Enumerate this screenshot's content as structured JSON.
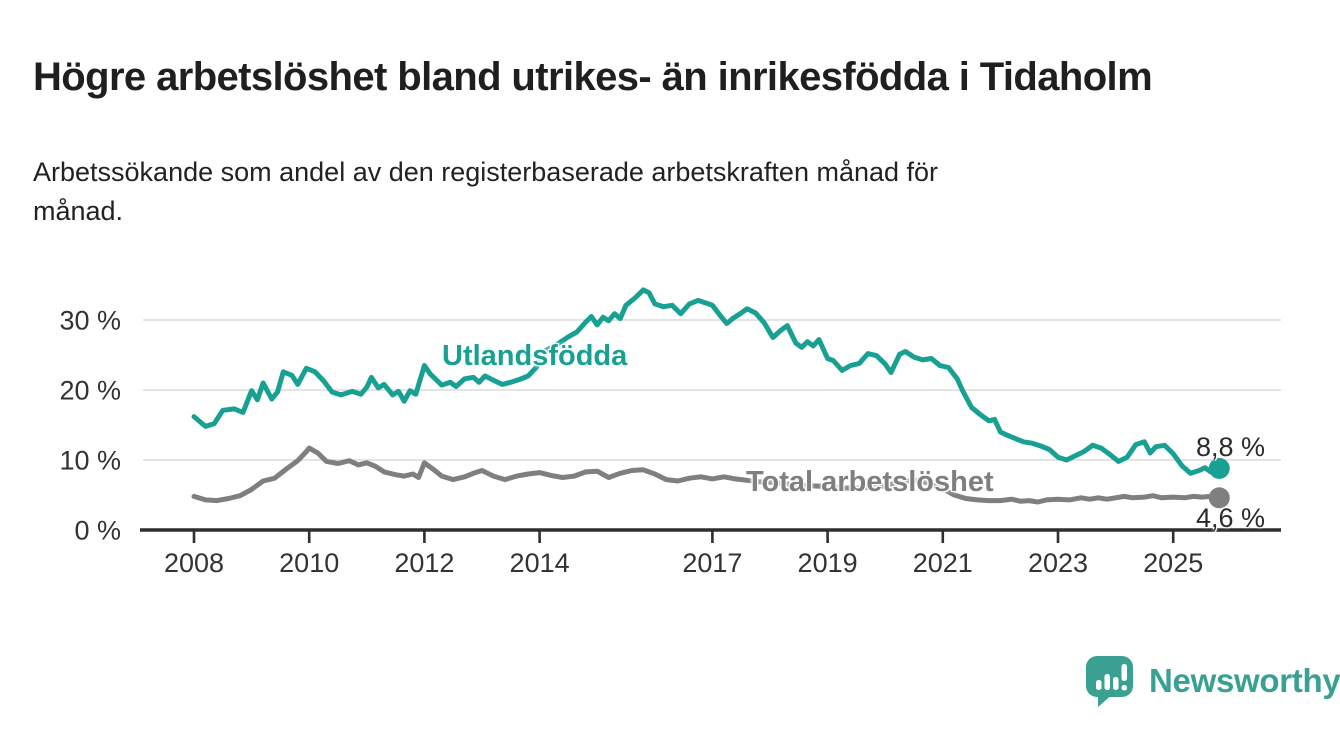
{
  "title": "Högre arbetslöshet bland utrikes- än inrikesfödda i Tidaholm",
  "subtitle": {
    "line1": "Arbetssökande som andel av den registerbaserade arbetskraften månad för",
    "line2": "månad."
  },
  "colors": {
    "foreign_born_line": "#18a193",
    "total_line": "#7f7f7f",
    "grid": "#dcdcdc",
    "axis": "#2f2f2f",
    "tick_label": "#333333",
    "title_text": "#1f1f1f",
    "end_label_text": "#2b2b2b",
    "logo_teal": "#3aa092",
    "background": "#ffffff"
  },
  "chart_data": {
    "type": "line",
    "title": "",
    "xlabel": "",
    "ylabel": "",
    "x_axis_years": [
      2007.06,
      2026.87
    ],
    "ylim": [
      0,
      35
    ],
    "grid": "horizontal",
    "legend_position": "inline-labels",
    "x_tick_years": [
      2008,
      2010,
      2012,
      2014,
      2017,
      2019,
      2021,
      2023,
      2025
    ],
    "x_tick_labels": [
      "2008",
      "2010",
      "2012",
      "2014",
      "2017",
      "2019",
      "2021",
      "2023",
      "2025"
    ],
    "y_ticks": [
      0,
      10,
      20,
      30
    ],
    "y_tick_labels": [
      "0 %",
      "10 %",
      "20 %",
      "30 %"
    ],
    "series": [
      {
        "name": "Utlandsfödda",
        "color": "#18a193",
        "end_label": "8,8 %",
        "end_value": 8.8,
        "points": [
          [
            2008.0,
            16.2
          ],
          [
            2008.2,
            14.8
          ],
          [
            2008.35,
            15.2
          ],
          [
            2008.5,
            17.1
          ],
          [
            2008.7,
            17.3
          ],
          [
            2008.85,
            16.8
          ],
          [
            2009.0,
            19.9
          ],
          [
            2009.1,
            18.6
          ],
          [
            2009.2,
            21.0
          ],
          [
            2009.35,
            18.7
          ],
          [
            2009.45,
            19.7
          ],
          [
            2009.55,
            22.6
          ],
          [
            2009.7,
            22.1
          ],
          [
            2009.8,
            20.8
          ],
          [
            2009.95,
            23.1
          ],
          [
            2010.1,
            22.6
          ],
          [
            2010.25,
            21.3
          ],
          [
            2010.4,
            19.7
          ],
          [
            2010.55,
            19.3
          ],
          [
            2010.75,
            19.8
          ],
          [
            2010.9,
            19.4
          ],
          [
            2011.0,
            20.4
          ],
          [
            2011.08,
            21.8
          ],
          [
            2011.2,
            20.3
          ],
          [
            2011.3,
            20.8
          ],
          [
            2011.45,
            19.3
          ],
          [
            2011.55,
            19.8
          ],
          [
            2011.65,
            18.4
          ],
          [
            2011.75,
            19.9
          ],
          [
            2011.85,
            19.4
          ],
          [
            2012.0,
            23.5
          ],
          [
            2012.1,
            22.3
          ],
          [
            2012.3,
            20.7
          ],
          [
            2012.45,
            21.1
          ],
          [
            2012.55,
            20.5
          ],
          [
            2012.7,
            21.6
          ],
          [
            2012.85,
            21.8
          ],
          [
            2012.95,
            21.1
          ],
          [
            2013.05,
            22.0
          ],
          [
            2013.2,
            21.4
          ],
          [
            2013.35,
            20.8
          ],
          [
            2013.5,
            21.1
          ],
          [
            2013.65,
            21.5
          ],
          [
            2013.8,
            22.0
          ],
          [
            2013.95,
            23.3
          ],
          [
            2014.1,
            25.6
          ],
          [
            2014.3,
            26.5
          ],
          [
            2014.5,
            27.6
          ],
          [
            2014.65,
            28.3
          ],
          [
            2014.8,
            29.7
          ],
          [
            2014.9,
            30.5
          ],
          [
            2015.0,
            29.3
          ],
          [
            2015.1,
            30.4
          ],
          [
            2015.2,
            29.9
          ],
          [
            2015.3,
            30.9
          ],
          [
            2015.4,
            30.2
          ],
          [
            2015.5,
            32.1
          ],
          [
            2015.65,
            33.1
          ],
          [
            2015.8,
            34.3
          ],
          [
            2015.9,
            33.9
          ],
          [
            2016.0,
            32.3
          ],
          [
            2016.15,
            31.9
          ],
          [
            2016.3,
            32.1
          ],
          [
            2016.45,
            30.9
          ],
          [
            2016.6,
            32.3
          ],
          [
            2016.75,
            32.8
          ],
          [
            2016.9,
            32.4
          ],
          [
            2017.0,
            32.1
          ],
          [
            2017.15,
            30.5
          ],
          [
            2017.25,
            29.5
          ],
          [
            2017.35,
            30.2
          ],
          [
            2017.5,
            31.0
          ],
          [
            2017.6,
            31.6
          ],
          [
            2017.75,
            31.0
          ],
          [
            2017.9,
            29.6
          ],
          [
            2018.05,
            27.5
          ],
          [
            2018.2,
            28.6
          ],
          [
            2018.3,
            29.2
          ],
          [
            2018.45,
            26.7
          ],
          [
            2018.55,
            26.1
          ],
          [
            2018.65,
            26.9
          ],
          [
            2018.75,
            26.3
          ],
          [
            2018.85,
            27.2
          ],
          [
            2019.0,
            24.5
          ],
          [
            2019.1,
            24.2
          ],
          [
            2019.25,
            22.8
          ],
          [
            2019.4,
            23.5
          ],
          [
            2019.55,
            23.8
          ],
          [
            2019.7,
            25.2
          ],
          [
            2019.85,
            24.9
          ],
          [
            2020.0,
            23.7
          ],
          [
            2020.1,
            22.5
          ],
          [
            2020.25,
            25.1
          ],
          [
            2020.35,
            25.5
          ],
          [
            2020.5,
            24.7
          ],
          [
            2020.65,
            24.3
          ],
          [
            2020.8,
            24.5
          ],
          [
            2020.95,
            23.5
          ],
          [
            2021.1,
            23.2
          ],
          [
            2021.25,
            21.6
          ],
          [
            2021.35,
            19.8
          ],
          [
            2021.5,
            17.5
          ],
          [
            2021.65,
            16.5
          ],
          [
            2021.8,
            15.6
          ],
          [
            2021.9,
            15.8
          ],
          [
            2022.0,
            14.0
          ],
          [
            2022.1,
            13.6
          ],
          [
            2022.25,
            13.1
          ],
          [
            2022.4,
            12.6
          ],
          [
            2022.55,
            12.4
          ],
          [
            2022.7,
            12.0
          ],
          [
            2022.85,
            11.5
          ],
          [
            2023.0,
            10.4
          ],
          [
            2023.15,
            10.0
          ],
          [
            2023.3,
            10.6
          ],
          [
            2023.45,
            11.2
          ],
          [
            2023.6,
            12.1
          ],
          [
            2023.75,
            11.7
          ],
          [
            2023.9,
            10.8
          ],
          [
            2024.05,
            9.8
          ],
          [
            2024.2,
            10.4
          ],
          [
            2024.35,
            12.2
          ],
          [
            2024.5,
            12.6
          ],
          [
            2024.6,
            11.0
          ],
          [
            2024.7,
            11.9
          ],
          [
            2024.85,
            12.1
          ],
          [
            2025.0,
            10.9
          ],
          [
            2025.15,
            9.2
          ],
          [
            2025.3,
            8.1
          ],
          [
            2025.45,
            8.5
          ],
          [
            2025.55,
            8.9
          ],
          [
            2025.65,
            8.3
          ],
          [
            2025.8,
            8.8
          ]
        ]
      },
      {
        "name": "Total arbetslöshet",
        "color": "#7f7f7f",
        "end_label": "4,6 %",
        "end_value": 4.6,
        "points": [
          [
            2008.0,
            4.8
          ],
          [
            2008.2,
            4.3
          ],
          [
            2008.4,
            4.2
          ],
          [
            2008.6,
            4.5
          ],
          [
            2008.8,
            4.9
          ],
          [
            2009.0,
            5.8
          ],
          [
            2009.2,
            7.0
          ],
          [
            2009.4,
            7.4
          ],
          [
            2009.6,
            8.7
          ],
          [
            2009.8,
            9.9
          ],
          [
            2009.95,
            11.2
          ],
          [
            2010.0,
            11.7
          ],
          [
            2010.15,
            11.0
          ],
          [
            2010.3,
            9.8
          ],
          [
            2010.5,
            9.5
          ],
          [
            2010.7,
            9.9
          ],
          [
            2010.85,
            9.3
          ],
          [
            2011.0,
            9.6
          ],
          [
            2011.15,
            9.1
          ],
          [
            2011.3,
            8.3
          ],
          [
            2011.5,
            7.9
          ],
          [
            2011.65,
            7.7
          ],
          [
            2011.8,
            8.0
          ],
          [
            2011.9,
            7.5
          ],
          [
            2012.0,
            9.6
          ],
          [
            2012.15,
            8.7
          ],
          [
            2012.3,
            7.7
          ],
          [
            2012.5,
            7.2
          ],
          [
            2012.7,
            7.6
          ],
          [
            2012.85,
            8.1
          ],
          [
            2013.0,
            8.5
          ],
          [
            2013.2,
            7.7
          ],
          [
            2013.4,
            7.2
          ],
          [
            2013.6,
            7.7
          ],
          [
            2013.8,
            8.0
          ],
          [
            2014.0,
            8.2
          ],
          [
            2014.2,
            7.8
          ],
          [
            2014.4,
            7.5
          ],
          [
            2014.6,
            7.7
          ],
          [
            2014.8,
            8.3
          ],
          [
            2015.0,
            8.4
          ],
          [
            2015.2,
            7.5
          ],
          [
            2015.4,
            8.1
          ],
          [
            2015.6,
            8.5
          ],
          [
            2015.8,
            8.6
          ],
          [
            2016.0,
            8.0
          ],
          [
            2016.2,
            7.2
          ],
          [
            2016.4,
            7.0
          ],
          [
            2016.6,
            7.4
          ],
          [
            2016.8,
            7.6
          ],
          [
            2017.0,
            7.3
          ],
          [
            2017.2,
            7.6
          ],
          [
            2017.4,
            7.3
          ],
          [
            2017.6,
            7.1
          ],
          [
            2017.8,
            6.9
          ],
          [
            2018.0,
            6.8
          ],
          [
            2018.25,
            6.6
          ],
          [
            2018.5,
            6.4
          ],
          [
            2018.75,
            6.3
          ],
          [
            2019.0,
            6.2
          ],
          [
            2019.25,
            6.0
          ],
          [
            2019.5,
            6.0
          ],
          [
            2019.75,
            6.1
          ],
          [
            2020.0,
            6.3
          ],
          [
            2020.25,
            6.9
          ],
          [
            2020.5,
            7.1
          ],
          [
            2020.75,
            6.7
          ],
          [
            2021.0,
            5.9
          ],
          [
            2021.2,
            5.0
          ],
          [
            2021.4,
            4.5
          ],
          [
            2021.6,
            4.3
          ],
          [
            2021.8,
            4.2
          ],
          [
            2022.0,
            4.2
          ],
          [
            2022.2,
            4.4
          ],
          [
            2022.35,
            4.1
          ],
          [
            2022.5,
            4.2
          ],
          [
            2022.65,
            4.0
          ],
          [
            2022.8,
            4.3
          ],
          [
            2023.0,
            4.4
          ],
          [
            2023.2,
            4.3
          ],
          [
            2023.4,
            4.6
          ],
          [
            2023.55,
            4.4
          ],
          [
            2023.7,
            4.6
          ],
          [
            2023.85,
            4.4
          ],
          [
            2024.0,
            4.6
          ],
          [
            2024.15,
            4.8
          ],
          [
            2024.3,
            4.6
          ],
          [
            2024.5,
            4.7
          ],
          [
            2024.65,
            4.9
          ],
          [
            2024.8,
            4.6
          ],
          [
            2025.0,
            4.7
          ],
          [
            2025.2,
            4.6
          ],
          [
            2025.35,
            4.8
          ],
          [
            2025.5,
            4.7
          ],
          [
            2025.65,
            4.8
          ],
          [
            2025.8,
            4.6
          ]
        ]
      }
    ]
  },
  "logo": {
    "text": "Newsworthy",
    "icon": "bar-chart-speech-bubble-icon"
  }
}
